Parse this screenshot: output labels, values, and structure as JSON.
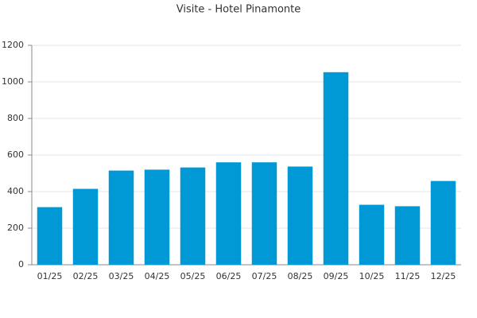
{
  "chart_data": {
    "type": "bar",
    "title": "Visite - Hotel Pinamonte",
    "categories": [
      "01/25",
      "02/25",
      "03/25",
      "04/25",
      "05/25",
      "06/25",
      "07/25",
      "08/25",
      "09/25",
      "10/25",
      "11/25",
      "12/25"
    ],
    "values": [
      315,
      415,
      515,
      520,
      532,
      560,
      560,
      537,
      1053,
      328,
      320,
      458
    ],
    "color": "#0099d6",
    "ylim": [
      0,
      1200
    ],
    "yticks": [
      0,
      200,
      400,
      600,
      800,
      1000,
      1200
    ],
    "grid": true
  }
}
